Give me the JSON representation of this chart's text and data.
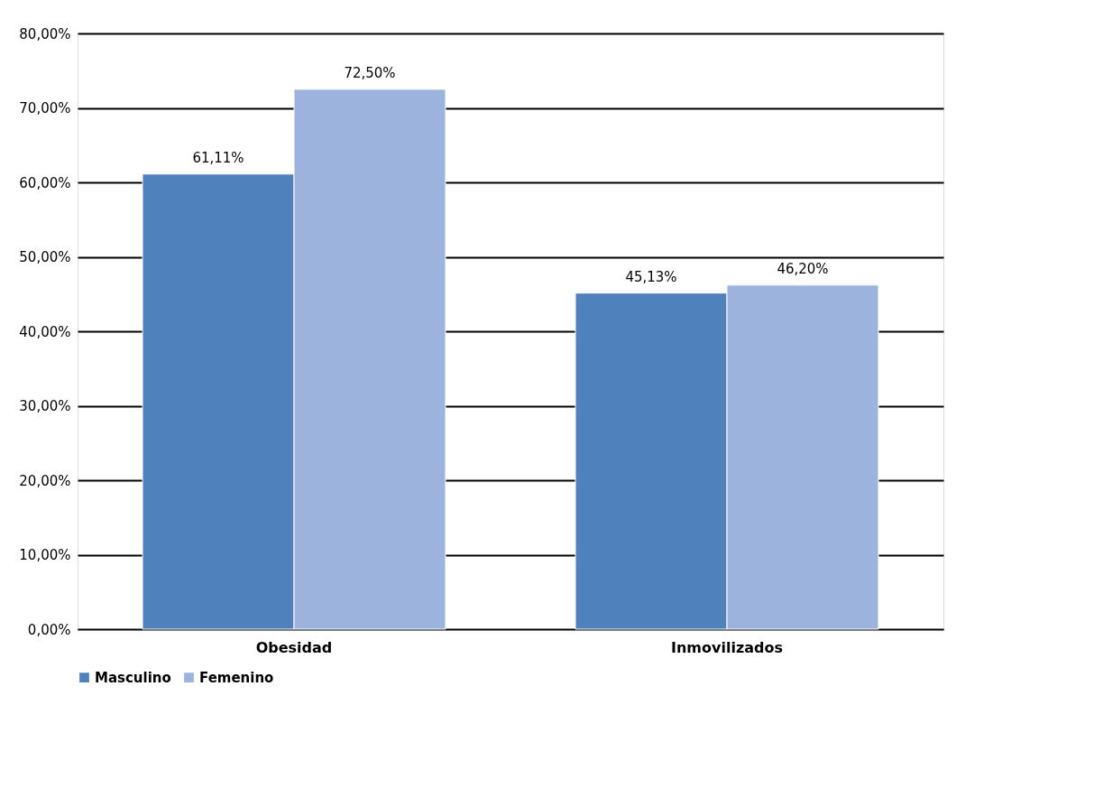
{
  "chart_data": {
    "type": "bar",
    "categories": [
      "Obesidad",
      "Inmovilizados"
    ],
    "series": [
      {
        "name": "Masculino",
        "color": "#4f81bd",
        "values": [
          61.11,
          45.13
        ],
        "value_labels": [
          "61,11%",
          "45,13%"
        ]
      },
      {
        "name": "Femenino",
        "color": "#9bb3dd",
        "values": [
          72.5,
          46.2
        ],
        "value_labels": [
          "72,50%",
          "46,20%"
        ]
      }
    ],
    "ylim": [
      0,
      80
    ],
    "yticks": [
      {
        "value": 0,
        "label": "0,00%"
      },
      {
        "value": 10,
        "label": "10,00%"
      },
      {
        "value": 20,
        "label": "20,00%"
      },
      {
        "value": 30,
        "label": "30,00%"
      },
      {
        "value": 40,
        "label": "40,00%"
      },
      {
        "value": 50,
        "label": "50,00%"
      },
      {
        "value": 60,
        "label": "60,00%"
      },
      {
        "value": 70,
        "label": "70,00%"
      },
      {
        "value": 80,
        "label": "80,00%"
      }
    ],
    "grid": "y",
    "legend": "bottom"
  }
}
